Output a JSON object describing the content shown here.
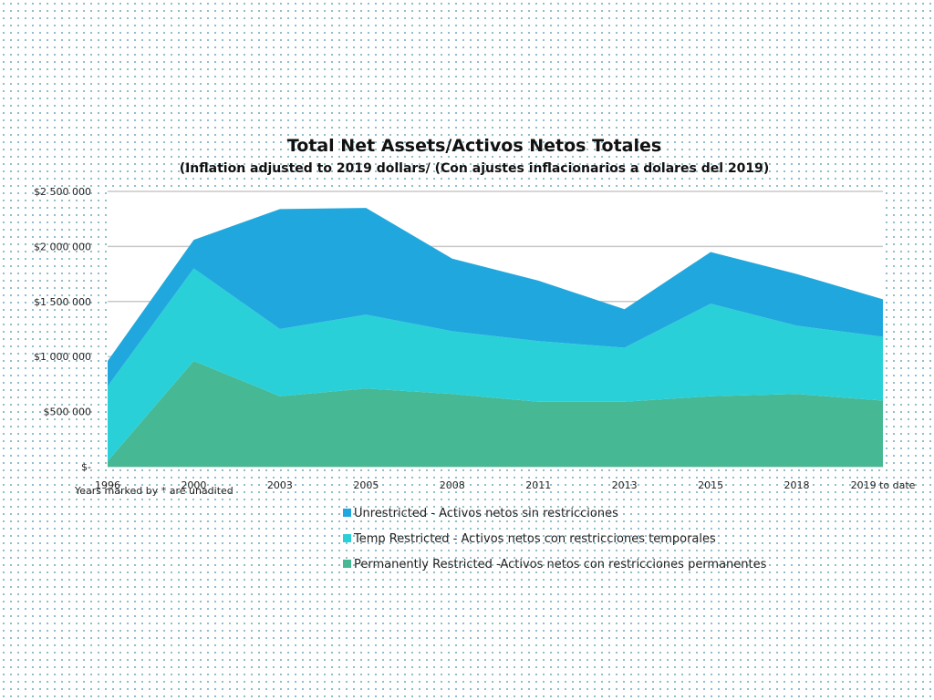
{
  "chart_data": {
    "type": "area",
    "stacked": true,
    "title": "Total Net Assets/Activos Netos Totales",
    "subtitle": "(Inflation adjusted to 2019 dollars/ (Con ajustes inflacionarios a dolares del 2019)",
    "categories": [
      "1996",
      "2000",
      "2003",
      "2005",
      "2008",
      "2011",
      "2013",
      "2015",
      "2018",
      "2019 to date"
    ],
    "ylim": [
      0,
      2500000
    ],
    "y_ticks": [
      {
        "value": 0,
        "label": "$-"
      },
      {
        "value": 500000,
        "label": "$500 000"
      },
      {
        "value": 1000000,
        "label": "$1 000 000"
      },
      {
        "value": 1500000,
        "label": "$1 500 000"
      },
      {
        "value": 2000000,
        "label": "$2 000 000"
      },
      {
        "value": 2500000,
        "label": "$2 500 000"
      }
    ],
    "grid": true,
    "legend_position": "bottom",
    "note": "Years marked by * are unadited",
    "series": [
      {
        "name": "Permanently Restricted -Activos netos con restricciones permanentes",
        "color": "#46b894",
        "values": [
          50000,
          960000,
          640000,
          710000,
          660000,
          590000,
          590000,
          640000,
          660000,
          600000
        ]
      },
      {
        "name": "Temp Restricted - Activos netos con restricciones temporales",
        "color": "#2ad0d8",
        "values": [
          680000,
          840000,
          610000,
          670000,
          570000,
          550000,
          490000,
          840000,
          620000,
          580000
        ]
      },
      {
        "name": "Unrestricted - Activos netos sin restricciones",
        "color": "#20a8de",
        "values": [
          230000,
          260000,
          1090000,
          970000,
          660000,
          550000,
          350000,
          470000,
          470000,
          340000
        ]
      }
    ],
    "legend_order": [
      2,
      1,
      0
    ]
  }
}
